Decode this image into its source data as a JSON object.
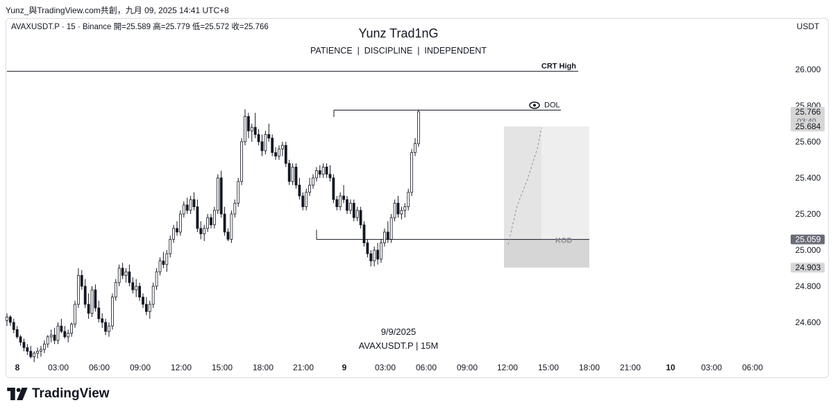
{
  "header": {
    "attribution": "Yunz_與TradingView.com共創，九月 09, 2025 14:41 UTC+8"
  },
  "symbol_line": "AVAXUSDT.P · 15 · Binance  開=25.589  高=25.779  低=25.572  收=25.766",
  "watermark": {
    "title": "Yunz Trad1nG",
    "subtitle": "PATIENCE  |  DISCIPLINE  |  INDEPENDENT",
    "date": "9/9/2025",
    "symbol": "AVAXUSDT.P | 15M"
  },
  "currency_label": "USDT",
  "brand": {
    "name": "TradingView"
  },
  "chart_data": {
    "type": "candlestick",
    "title": "",
    "xlabel": "",
    "ylabel": "",
    "ylim": [
      24.38,
      26.28
    ],
    "y_ticks": [
      "26.000",
      "25.800",
      "25.600",
      "25.400",
      "25.200",
      "25.000",
      "24.800",
      "24.600"
    ],
    "x_ticks": [
      "8",
      "03:00",
      "06:00",
      "09:00",
      "12:00",
      "15:00",
      "18:00",
      "21:00",
      "9",
      "03:00",
      "06:00",
      "09:00",
      "12:00",
      "15:00",
      "18:00",
      "21:00",
      "10",
      "03:00",
      "06:00"
    ],
    "grid": false,
    "colors": {
      "candle": "#131722",
      "axis_text": "#131722",
      "line": "#131722",
      "zone_light": "#eeeeee",
      "zone_dark": "#d6d6d6",
      "badge_dark": "#6a6d78",
      "badge_light": "#d6d6d6"
    },
    "candles": [
      [
        24.61,
        24.65,
        24.58,
        24.63
      ],
      [
        24.63,
        24.64,
        24.58,
        24.6
      ],
      [
        24.6,
        24.62,
        24.54,
        24.56
      ],
      [
        24.56,
        24.58,
        24.51,
        24.52
      ],
      [
        24.52,
        24.53,
        24.47,
        24.49
      ],
      [
        24.49,
        24.51,
        24.44,
        24.46
      ],
      [
        24.46,
        24.48,
        24.42,
        24.44
      ],
      [
        24.44,
        24.47,
        24.4,
        24.41
      ],
      [
        24.41,
        24.44,
        24.38,
        24.43
      ],
      [
        24.43,
        24.46,
        24.4,
        24.44
      ],
      [
        24.44,
        24.47,
        24.41,
        24.45
      ],
      [
        24.45,
        24.5,
        24.43,
        24.48
      ],
      [
        24.48,
        24.53,
        24.46,
        24.52
      ],
      [
        24.52,
        24.56,
        24.49,
        24.53
      ],
      [
        24.53,
        24.57,
        24.48,
        24.5
      ],
      [
        24.5,
        24.6,
        24.48,
        24.58
      ],
      [
        24.58,
        24.62,
        24.54,
        24.55
      ],
      [
        24.55,
        24.58,
        24.51,
        24.52
      ],
      [
        24.52,
        24.56,
        24.49,
        24.54
      ],
      [
        24.54,
        24.6,
        24.52,
        24.59
      ],
      [
        24.59,
        24.72,
        24.57,
        24.7
      ],
      [
        24.7,
        24.9,
        24.68,
        24.86
      ],
      [
        24.86,
        24.89,
        24.78,
        24.8
      ],
      [
        24.8,
        24.84,
        24.68,
        24.7
      ],
      [
        24.7,
        24.76,
        24.62,
        24.65
      ],
      [
        24.65,
        24.8,
        24.63,
        24.78
      ],
      [
        24.78,
        24.81,
        24.66,
        24.68
      ],
      [
        24.68,
        24.72,
        24.6,
        24.62
      ],
      [
        24.62,
        24.65,
        24.57,
        24.6
      ],
      [
        24.6,
        24.62,
        24.53,
        24.55
      ],
      [
        24.55,
        24.6,
        24.52,
        24.58
      ],
      [
        24.58,
        24.76,
        24.56,
        24.74
      ],
      [
        24.74,
        24.84,
        24.72,
        24.82
      ],
      [
        24.82,
        24.92,
        24.8,
        24.9
      ],
      [
        24.9,
        24.93,
        24.84,
        24.86
      ],
      [
        24.86,
        24.9,
        24.82,
        24.88
      ],
      [
        24.88,
        24.92,
        24.8,
        24.82
      ],
      [
        24.82,
        24.85,
        24.76,
        24.78
      ],
      [
        24.78,
        24.84,
        24.74,
        24.8
      ],
      [
        24.8,
        24.82,
        24.72,
        24.74
      ],
      [
        24.74,
        24.76,
        24.68,
        24.7
      ],
      [
        24.7,
        24.74,
        24.64,
        24.66
      ],
      [
        24.66,
        24.72,
        24.62,
        24.7
      ],
      [
        24.7,
        24.82,
        24.68,
        24.8
      ],
      [
        24.8,
        24.9,
        24.78,
        24.88
      ],
      [
        24.88,
        24.96,
        24.86,
        24.94
      ],
      [
        24.94,
        24.99,
        24.9,
        24.92
      ],
      [
        24.92,
        25.0,
        24.88,
        24.98
      ],
      [
        24.98,
        25.08,
        24.96,
        25.06
      ],
      [
        25.06,
        25.14,
        25.04,
        25.12
      ],
      [
        25.12,
        25.16,
        25.08,
        25.1
      ],
      [
        25.1,
        25.22,
        25.08,
        25.2
      ],
      [
        25.2,
        25.27,
        25.18,
        25.25
      ],
      [
        25.25,
        25.29,
        25.2,
        25.22
      ],
      [
        25.22,
        25.3,
        25.2,
        25.28
      ],
      [
        25.28,
        25.32,
        25.22,
        25.24
      ],
      [
        25.24,
        25.28,
        25.1,
        25.12
      ],
      [
        25.12,
        25.16,
        25.06,
        25.09
      ],
      [
        25.09,
        25.14,
        25.05,
        25.12
      ],
      [
        25.12,
        25.2,
        25.1,
        25.18
      ],
      [
        25.18,
        25.2,
        25.12,
        25.14
      ],
      [
        25.14,
        25.24,
        25.12,
        25.22
      ],
      [
        25.22,
        25.42,
        25.2,
        25.4
      ],
      [
        25.4,
        25.44,
        25.18,
        25.2
      ],
      [
        25.2,
        25.24,
        25.08,
        25.1
      ],
      [
        25.1,
        25.12,
        25.05,
        25.06
      ],
      [
        25.06,
        25.22,
        25.04,
        25.2
      ],
      [
        25.2,
        25.28,
        25.18,
        25.26
      ],
      [
        25.26,
        25.4,
        25.24,
        25.38
      ],
      [
        25.38,
        25.62,
        25.36,
        25.6
      ],
      [
        25.6,
        25.78,
        25.58,
        25.74
      ],
      [
        25.74,
        25.76,
        25.62,
        25.66
      ],
      [
        25.66,
        25.7,
        25.6,
        25.68
      ],
      [
        25.68,
        25.76,
        25.62,
        25.64
      ],
      [
        25.64,
        25.67,
        25.58,
        25.6
      ],
      [
        25.6,
        25.64,
        25.52,
        25.55
      ],
      [
        25.55,
        25.66,
        25.53,
        25.64
      ],
      [
        25.64,
        25.7,
        25.6,
        25.62
      ],
      [
        25.62,
        25.64,
        25.52,
        25.54
      ],
      [
        25.54,
        25.57,
        25.5,
        25.52
      ],
      [
        25.52,
        25.58,
        25.5,
        25.56
      ],
      [
        25.56,
        25.6,
        25.52,
        25.58
      ],
      [
        25.58,
        25.6,
        25.46,
        25.48
      ],
      [
        25.48,
        25.5,
        25.36,
        25.38
      ],
      [
        25.38,
        25.48,
        25.36,
        25.46
      ],
      [
        25.46,
        25.48,
        25.34,
        25.36
      ],
      [
        25.36,
        25.4,
        25.28,
        25.3
      ],
      [
        25.3,
        25.32,
        25.22,
        25.24
      ],
      [
        25.24,
        25.34,
        25.22,
        25.32
      ],
      [
        25.32,
        25.4,
        25.3,
        25.36
      ],
      [
        25.36,
        25.42,
        25.34,
        25.4
      ],
      [
        25.4,
        25.46,
        25.38,
        25.44
      ],
      [
        25.44,
        25.47,
        25.4,
        25.42
      ],
      [
        25.42,
        25.48,
        25.4,
        25.46
      ],
      [
        25.46,
        25.48,
        25.4,
        25.42
      ],
      [
        25.42,
        25.47,
        25.38,
        25.4
      ],
      [
        25.4,
        25.42,
        25.26,
        25.28
      ],
      [
        25.28,
        25.3,
        25.22,
        25.24
      ],
      [
        25.24,
        25.32,
        25.22,
        25.3
      ],
      [
        25.3,
        25.36,
        25.26,
        25.28
      ],
      [
        25.28,
        25.3,
        25.2,
        25.22
      ],
      [
        25.22,
        25.28,
        25.2,
        25.26
      ],
      [
        25.26,
        25.28,
        25.16,
        25.18
      ],
      [
        25.18,
        25.24,
        25.16,
        25.22
      ],
      [
        25.22,
        25.24,
        25.12,
        25.14
      ],
      [
        25.14,
        25.16,
        25.02,
        25.04
      ],
      [
        25.04,
        25.06,
        24.96,
        24.98
      ],
      [
        24.98,
        25.0,
        24.91,
        24.94
      ],
      [
        24.94,
        25.02,
        24.91,
        25.0
      ],
      [
        25.0,
        25.04,
        24.92,
        24.95
      ],
      [
        24.95,
        25.06,
        24.93,
        25.04
      ],
      [
        25.04,
        25.12,
        25.02,
        25.1
      ],
      [
        25.1,
        25.16,
        25.04,
        25.06
      ],
      [
        25.06,
        25.2,
        25.04,
        25.18
      ],
      [
        25.18,
        25.28,
        25.16,
        25.26
      ],
      [
        25.26,
        25.3,
        25.18,
        25.2
      ],
      [
        25.2,
        25.24,
        25.17,
        25.22
      ],
      [
        25.22,
        25.26,
        25.18,
        25.24
      ],
      [
        25.24,
        25.34,
        25.22,
        25.32
      ],
      [
        25.32,
        25.56,
        25.3,
        25.54
      ],
      [
        25.54,
        25.62,
        25.52,
        25.59
      ],
      [
        25.589,
        25.779,
        25.572,
        25.766
      ]
    ],
    "annotations": {
      "crt_high": {
        "label": "CRT High",
        "price": 25.99
      },
      "dol": {
        "label": "DOL",
        "price": 25.775
      },
      "kod": {
        "label": "KOD",
        "price": 25.059
      },
      "zone_upper": [
        25.059,
        25.684
      ],
      "zone_lower": [
        24.903,
        25.059
      ]
    },
    "price_badges": [
      {
        "price": 25.766,
        "text": "25.766",
        "sub": "03:40",
        "style": "light"
      },
      {
        "price": 25.684,
        "text": "25.684",
        "style": "light"
      },
      {
        "price": 25.059,
        "text": "25.059",
        "style": "dark"
      },
      {
        "price": 24.903,
        "text": "24.903",
        "style": "light"
      }
    ]
  }
}
